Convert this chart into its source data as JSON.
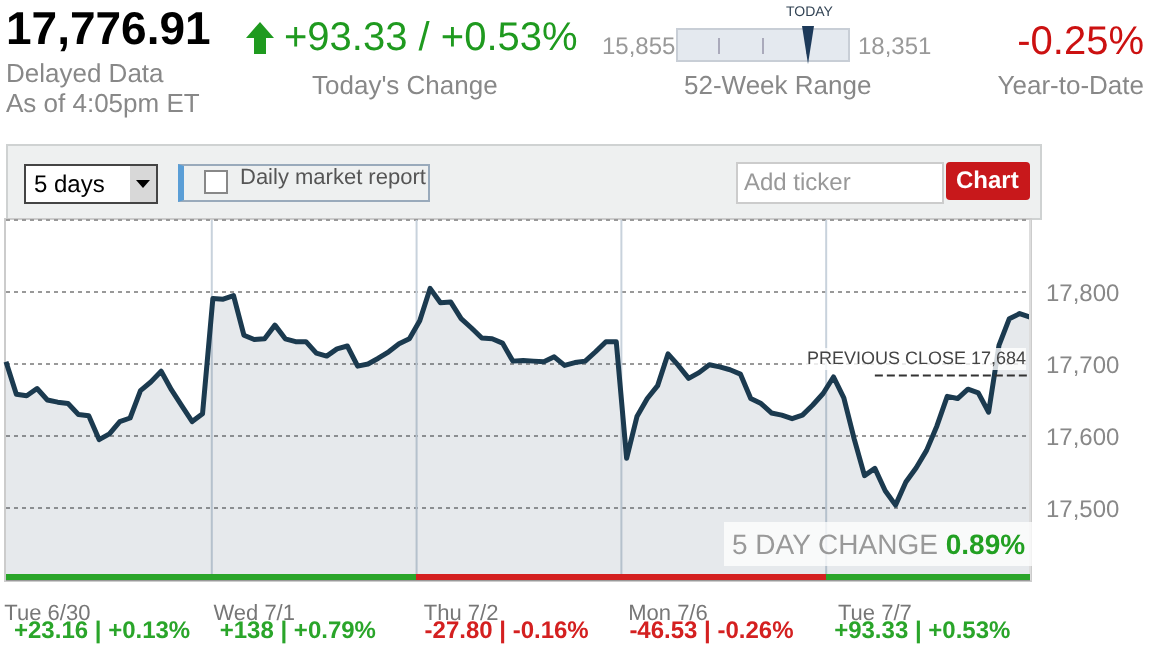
{
  "chart_data": {
    "type": "area",
    "ylim": [
      17400,
      17900
    ],
    "categories": [
      null,
      null,
      null,
      null,
      "Tue 6/30",
      null,
      null,
      null,
      null,
      null,
      null,
      null,
      null,
      null,
      null,
      null,
      null,
      null,
      null,
      null,
      null,
      null,
      null,
      null,
      "Wed 7/1",
      null,
      null,
      null,
      null,
      null,
      null,
      null,
      null,
      null,
      null,
      null,
      null,
      null,
      null,
      null,
      null,
      null,
      null,
      null,
      "Thu 7/2",
      null,
      null,
      null,
      null,
      null,
      null,
      null,
      null,
      null,
      null,
      null,
      null,
      null,
      null,
      null,
      null,
      null,
      null,
      null,
      "Mon 7/6",
      null,
      null,
      null,
      null,
      null,
      null,
      null,
      null,
      null,
      null,
      null,
      null,
      null,
      null,
      null,
      null,
      null,
      null,
      null,
      "Tue 7/7",
      null,
      null,
      null,
      null,
      null,
      null,
      null,
      null,
      null,
      null,
      null,
      null,
      null,
      null,
      null
    ],
    "yticks": [
      {
        "value": 17500,
        "label": "17,500"
      },
      {
        "value": 17600,
        "label": "17,600"
      },
      {
        "value": 17700,
        "label": "17,700"
      },
      {
        "value": 17800,
        "label": "17,800"
      }
    ],
    "grid": true,
    "series": [
      {
        "color": "#1b3a4f",
        "values": [
          17703,
          17658,
          17656,
          17666,
          17650,
          17647,
          17645,
          17630,
          17628,
          17595,
          17603,
          17620,
          17625,
          17663,
          17675,
          17690,
          17664,
          17642,
          17620,
          17631,
          17791,
          17790,
          17795,
          17740,
          17734,
          17735,
          17754,
          17735,
          17731,
          17731,
          17715,
          17711,
          17721,
          17725,
          17697,
          17700,
          17708,
          17717,
          17728,
          17735,
          17760,
          17805,
          17785,
          17786,
          17763,
          17750,
          17736,
          17735,
          17729,
          17704,
          17705,
          17704,
          17703,
          17710,
          17698,
          17702,
          17704,
          17717,
          17731,
          17731,
          17569,
          17627,
          17652,
          17670,
          17714,
          17698,
          17680,
          17688,
          17699,
          17696,
          17692,
          17686,
          17652,
          17645,
          17632,
          17629,
          17624,
          17629,
          17643,
          17659,
          17682,
          17653,
          17596,
          17545,
          17555,
          17524,
          17504,
          17536,
          17556,
          17580,
          17614,
          17655,
          17652,
          17665,
          17660,
          17633,
          17726,
          17763,
          17770,
          17765
        ]
      }
    ],
    "ref_lines": [
      {
        "axis": "y",
        "value": 17684,
        "label": "PREVIOUS CLOSE 17,684",
        "line_style": "dashed",
        "color": "#333333"
      }
    ],
    "annotations": [
      "17,776.91",
      "Delayed Data",
      "As of 4:05pm ET",
      "+93.33 / +0.53%",
      "Today's Change",
      "15,855",
      "TODAY",
      "18,351",
      "52-Week Range",
      "-0.25%",
      "Year-to-Date",
      "5 days",
      "Daily market report",
      "Add ticker",
      "Chart",
      "5 DAY CHANGE 0.89%",
      "+23.16 | +0.13%",
      "+138 | +0.79%",
      "-27.80 | -0.16%",
      "-46.53 | -0.26%",
      "+93.33 | +0.53%"
    ]
  }
}
